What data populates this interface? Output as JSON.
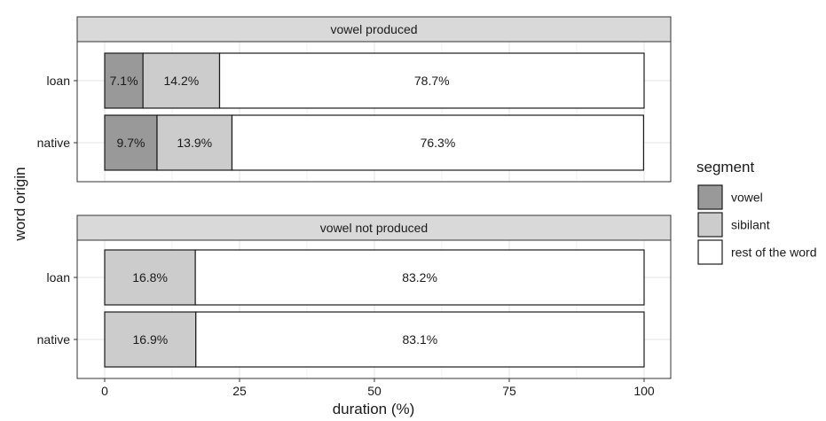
{
  "chart_data": {
    "type": "bar",
    "orientation": "horizontal",
    "stacked": true,
    "xlabel": "duration (%)",
    "ylabel": "word origin",
    "xlim": [
      0,
      100
    ],
    "x_ticks": [
      "0",
      "25",
      "50",
      "75",
      "100"
    ],
    "grid": true,
    "legend": {
      "title": "segment",
      "position": "right",
      "entries": [
        {
          "label": "vowel",
          "color": "#999999"
        },
        {
          "label": "sibilant",
          "color": "#cccccc"
        },
        {
          "label": "rest of the word",
          "color": "#ffffff"
        }
      ]
    },
    "panels": [
      {
        "title": "vowel produced",
        "categories": [
          "loan",
          "native"
        ],
        "series": [
          {
            "name": "vowel",
            "values": [
              7.1,
              9.7
            ],
            "labels": [
              "7.1%",
              "9.7%"
            ]
          },
          {
            "name": "sibilant",
            "values": [
              14.2,
              13.9
            ],
            "labels": [
              "14.2%",
              "13.9%"
            ]
          },
          {
            "name": "rest of the word",
            "values": [
              78.7,
              76.3
            ],
            "labels": [
              "78.7%",
              "76.3%"
            ]
          }
        ]
      },
      {
        "title": "vowel not produced",
        "categories": [
          "loan",
          "native"
        ],
        "series": [
          {
            "name": "vowel",
            "values": [
              0,
              0
            ],
            "labels": [
              "",
              ""
            ]
          },
          {
            "name": "sibilant",
            "values": [
              16.8,
              16.9
            ],
            "labels": [
              "16.8%",
              "16.9%"
            ]
          },
          {
            "name": "rest of the word",
            "values": [
              83.2,
              83.1
            ],
            "labels": [
              "83.2%",
              "83.1%"
            ]
          }
        ]
      }
    ]
  }
}
